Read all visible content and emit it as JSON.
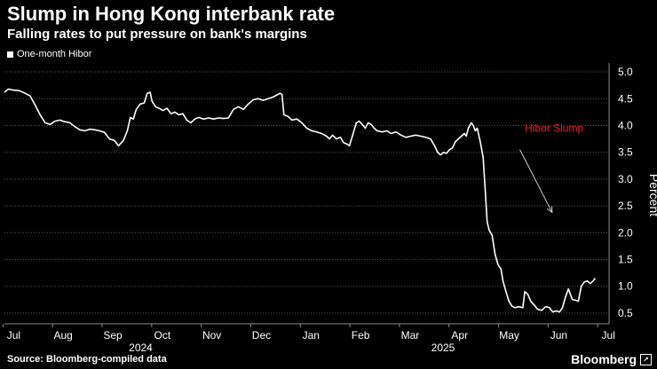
{
  "header": {
    "title": "Slump in Hong Kong interbank rate",
    "subtitle": "Falling rates to put pressure on bank's margins"
  },
  "footer": {
    "source": "Source: Bloomberg-compiled data",
    "brand": "Bloomberg"
  },
  "chart_data": {
    "type": "line",
    "title": "Slump in Hong Kong interbank rate",
    "subtitle": "Falling rates to put pressure on bank's margins",
    "xlabel": "",
    "ylabel": "Percent",
    "ylim": [
      0.3,
      5.1
    ],
    "yticks": [
      "0.5",
      "1.0",
      "1.5",
      "2.0",
      "2.5",
      "3.0",
      "3.5",
      "4.0",
      "4.5",
      "5.0"
    ],
    "ytick_values": [
      0.5,
      1.0,
      1.5,
      2.0,
      2.5,
      3.0,
      3.5,
      4.0,
      4.5,
      5.0
    ],
    "xlim": [
      0,
      12.2
    ],
    "xticks": [
      {
        "label": "Jul",
        "x": 0.15
      },
      {
        "label": "Aug",
        "x": 1.15
      },
      {
        "label": "Sep",
        "x": 2.15
      },
      {
        "label": "Oct",
        "x": 3.15
      },
      {
        "label": "Nov",
        "x": 4.15
      },
      {
        "label": "Dec",
        "x": 5.15
      },
      {
        "label": "Jan",
        "x": 6.15
      },
      {
        "label": "Feb",
        "x": 7.15
      },
      {
        "label": "Mar",
        "x": 8.15
      },
      {
        "label": "Apr",
        "x": 9.15
      },
      {
        "label": "May",
        "x": 10.15
      },
      {
        "label": "Jun",
        "x": 11.15
      },
      {
        "label": "Jul",
        "x": 12.15
      }
    ],
    "year_labels": [
      {
        "label": "2024",
        "x": 2.75
      },
      {
        "label": "2025",
        "x": 8.85
      }
    ],
    "legend": [
      "One-month Hibor"
    ],
    "annotation": {
      "text": "Hibor Slump",
      "color": "#e8202a",
      "x": 10.5,
      "y": 3.88,
      "arrow_from": [
        10.4,
        3.55
      ],
      "arrow_to": [
        11.05,
        2.38
      ]
    },
    "series": [
      {
        "name": "One-month Hibor",
        "color": "#ffffff",
        "points": [
          [
            0.0,
            4.62
          ],
          [
            0.08,
            4.68
          ],
          [
            0.18,
            4.66
          ],
          [
            0.3,
            4.65
          ],
          [
            0.42,
            4.6
          ],
          [
            0.52,
            4.55
          ],
          [
            0.62,
            4.38
          ],
          [
            0.72,
            4.2
          ],
          [
            0.82,
            4.05
          ],
          [
            0.92,
            4.02
          ],
          [
            1.02,
            4.08
          ],
          [
            1.12,
            4.1
          ],
          [
            1.22,
            4.07
          ],
          [
            1.32,
            4.05
          ],
          [
            1.42,
            3.98
          ],
          [
            1.52,
            3.92
          ],
          [
            1.62,
            3.9
          ],
          [
            1.72,
            3.93
          ],
          [
            1.82,
            3.92
          ],
          [
            1.92,
            3.9
          ],
          [
            2.02,
            3.87
          ],
          [
            2.12,
            3.75
          ],
          [
            2.22,
            3.72
          ],
          [
            2.3,
            3.62
          ],
          [
            2.4,
            3.72
          ],
          [
            2.48,
            3.9
          ],
          [
            2.54,
            4.15
          ],
          [
            2.6,
            4.12
          ],
          [
            2.66,
            4.3
          ],
          [
            2.74,
            4.4
          ],
          [
            2.82,
            4.42
          ],
          [
            2.88,
            4.6
          ],
          [
            2.94,
            4.62
          ],
          [
            2.98,
            4.45
          ],
          [
            3.05,
            4.35
          ],
          [
            3.12,
            4.32
          ],
          [
            3.2,
            4.28
          ],
          [
            3.28,
            4.32
          ],
          [
            3.36,
            4.22
          ],
          [
            3.44,
            4.25
          ],
          [
            3.52,
            4.2
          ],
          [
            3.6,
            4.22
          ],
          [
            3.68,
            4.1
          ],
          [
            3.76,
            4.05
          ],
          [
            3.84,
            4.12
          ],
          [
            3.92,
            4.15
          ],
          [
            4.02,
            4.12
          ],
          [
            4.12,
            4.14
          ],
          [
            4.22,
            4.12
          ],
          [
            4.32,
            4.14
          ],
          [
            4.42,
            4.13
          ],
          [
            4.52,
            4.14
          ],
          [
            4.62,
            4.3
          ],
          [
            4.72,
            4.35
          ],
          [
            4.82,
            4.3
          ],
          [
            4.92,
            4.4
          ],
          [
            5.02,
            4.48
          ],
          [
            5.12,
            4.5
          ],
          [
            5.22,
            4.47
          ],
          [
            5.32,
            4.5
          ],
          [
            5.42,
            4.53
          ],
          [
            5.5,
            4.57
          ],
          [
            5.56,
            4.6
          ],
          [
            5.6,
            4.58
          ],
          [
            5.64,
            4.2
          ],
          [
            5.72,
            4.17
          ],
          [
            5.8,
            4.1
          ],
          [
            5.9,
            4.12
          ],
          [
            6.0,
            4.05
          ],
          [
            6.1,
            3.95
          ],
          [
            6.2,
            3.9
          ],
          [
            6.3,
            3.88
          ],
          [
            6.4,
            3.85
          ],
          [
            6.5,
            3.8
          ],
          [
            6.56,
            3.75
          ],
          [
            6.62,
            3.82
          ],
          [
            6.7,
            3.75
          ],
          [
            6.78,
            3.78
          ],
          [
            6.84,
            3.68
          ],
          [
            6.92,
            3.65
          ],
          [
            6.96,
            3.62
          ],
          [
            7.02,
            3.8
          ],
          [
            7.1,
            4.05
          ],
          [
            7.16,
            4.08
          ],
          [
            7.22,
            4.02
          ],
          [
            7.28,
            3.95
          ],
          [
            7.34,
            4.05
          ],
          [
            7.4,
            4.02
          ],
          [
            7.46,
            3.95
          ],
          [
            7.52,
            3.9
          ],
          [
            7.62,
            3.88
          ],
          [
            7.72,
            3.9
          ],
          [
            7.8,
            3.85
          ],
          [
            7.9,
            3.88
          ],
          [
            8.0,
            3.82
          ],
          [
            8.1,
            3.78
          ],
          [
            8.2,
            3.8
          ],
          [
            8.3,
            3.82
          ],
          [
            8.4,
            3.8
          ],
          [
            8.5,
            3.78
          ],
          [
            8.6,
            3.75
          ],
          [
            8.68,
            3.62
          ],
          [
            8.74,
            3.5
          ],
          [
            8.8,
            3.45
          ],
          [
            8.86,
            3.5
          ],
          [
            8.92,
            3.48
          ],
          [
            8.98,
            3.55
          ],
          [
            9.04,
            3.58
          ],
          [
            9.1,
            3.7
          ],
          [
            9.16,
            3.75
          ],
          [
            9.22,
            3.8
          ],
          [
            9.28,
            3.85
          ],
          [
            9.32,
            3.8
          ],
          [
            9.36,
            3.95
          ],
          [
            9.42,
            4.05
          ],
          [
            9.46,
            4.0
          ],
          [
            9.5,
            3.9
          ],
          [
            9.54,
            3.95
          ],
          [
            9.6,
            3.7
          ],
          [
            9.66,
            3.4
          ],
          [
            9.7,
            2.8
          ],
          [
            9.74,
            2.2
          ],
          [
            9.78,
            2.05
          ],
          [
            9.84,
            1.95
          ],
          [
            9.9,
            1.6
          ],
          [
            9.96,
            1.4
          ],
          [
            10.02,
            1.32
          ],
          [
            10.06,
            1.1
          ],
          [
            10.12,
            0.9
          ],
          [
            10.18,
            0.72
          ],
          [
            10.24,
            0.63
          ],
          [
            10.3,
            0.6
          ],
          [
            10.38,
            0.62
          ],
          [
            10.46,
            0.6
          ],
          [
            10.5,
            0.9
          ],
          [
            10.56,
            0.85
          ],
          [
            10.62,
            0.72
          ],
          [
            10.68,
            0.66
          ],
          [
            10.76,
            0.57
          ],
          [
            10.84,
            0.55
          ],
          [
            10.92,
            0.62
          ],
          [
            11.0,
            0.6
          ],
          [
            11.06,
            0.52
          ],
          [
            11.14,
            0.54
          ],
          [
            11.2,
            0.52
          ],
          [
            11.26,
            0.6
          ],
          [
            11.32,
            0.8
          ],
          [
            11.38,
            0.95
          ],
          [
            11.46,
            0.75
          ],
          [
            11.52,
            0.74
          ],
          [
            11.58,
            0.72
          ],
          [
            11.64,
            1.0
          ],
          [
            11.7,
            1.08
          ],
          [
            11.76,
            1.1
          ],
          [
            11.82,
            1.05
          ],
          [
            11.88,
            1.1
          ],
          [
            11.92,
            1.15
          ]
        ]
      }
    ]
  }
}
